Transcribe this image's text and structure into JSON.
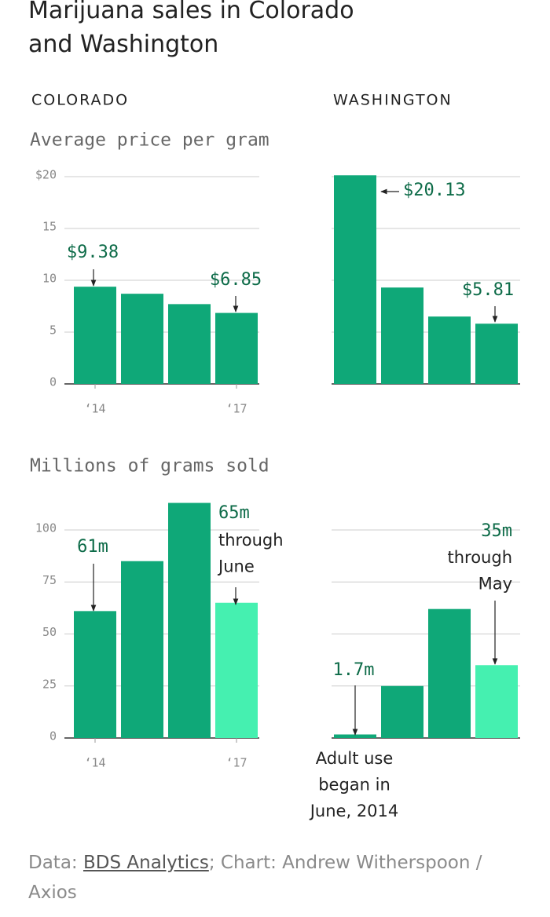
{
  "title": "Marijuana sales in Colorado and Washington",
  "columns": [
    "COLORADO",
    "WASHINGTON"
  ],
  "sections": [
    "Average price per gram",
    "Millions of grams sold"
  ],
  "source": {
    "prefix": "Data: ",
    "link": "BDS Analytics",
    "suffix": "; Chart: Andrew Witherspoon / Axios"
  },
  "chart_data": [
    {
      "type": "bar",
      "categories": [
        "‘14",
        null,
        null,
        "‘17"
      ],
      "values": [
        9.38,
        8.7,
        7.7,
        6.85
      ],
      "value_labels": [
        "$9.38",
        null,
        null,
        "$6.85"
      ],
      "colors": [
        "#0fa878",
        "#0fa878",
        "#0fa878",
        "#0fa878"
      ],
      "ylim": [
        0,
        20
      ],
      "yticks": [
        0,
        5,
        10,
        15,
        {
          "value": 20,
          "label": "$20"
        }
      ],
      "grid": true,
      "tick_labels": true
    },
    {
      "type": "bar",
      "categories": [
        null,
        null,
        null,
        null
      ],
      "values": [
        20.13,
        9.3,
        6.5,
        5.81
      ],
      "value_labels": [
        "$20.13",
        null,
        null,
        "$5.81"
      ],
      "colors": [
        "#0fa878",
        "#0fa878",
        "#0fa878",
        "#0fa878"
      ],
      "ylim": [
        0,
        20
      ],
      "yticks": [
        0,
        5,
        10,
        15,
        20
      ],
      "grid": true,
      "tick_labels": false
    },
    {
      "type": "bar",
      "categories": [
        "‘14",
        null,
        null,
        "‘17"
      ],
      "values": [
        61,
        85,
        113,
        65
      ],
      "value_labels": [
        "61m",
        null,
        null,
        "65m"
      ],
      "notes": [
        null,
        null,
        null,
        [
          "through",
          "June"
        ]
      ],
      "colors": [
        "#0fa878",
        "#0fa878",
        "#0fa878",
        "#45f0b0"
      ],
      "ylim": [
        0,
        115
      ],
      "yticks": [
        0,
        25,
        50,
        75,
        100
      ],
      "grid": true,
      "tick_labels": true
    },
    {
      "type": "bar",
      "categories": [
        null,
        null,
        null,
        null
      ],
      "values": [
        1.7,
        25,
        62,
        35
      ],
      "value_labels": [
        "1.7m",
        null,
        null,
        "35m"
      ],
      "notes": [
        [
          "Adult use",
          "began in",
          "June, 2014"
        ],
        null,
        null,
        [
          "through",
          "May"
        ]
      ],
      "colors": [
        "#0fa878",
        "#0fa878",
        "#0fa878",
        "#45f0b0"
      ],
      "ylim": [
        0,
        115
      ],
      "yticks": [
        0,
        25,
        50,
        75,
        100
      ],
      "grid": true,
      "tick_labels": false
    }
  ]
}
